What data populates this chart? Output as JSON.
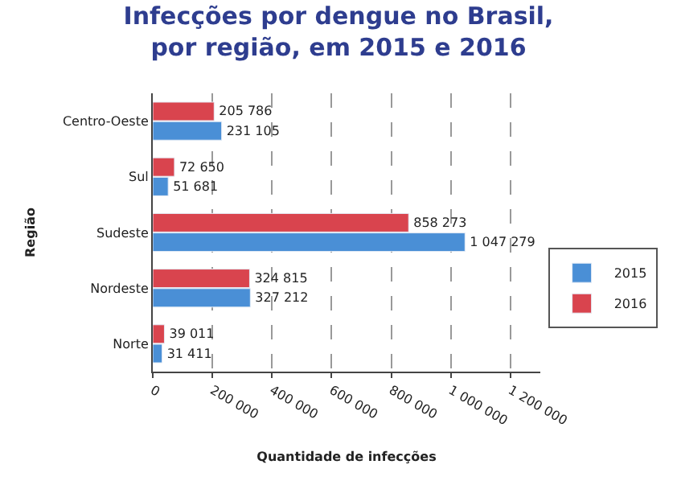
{
  "chart_data": {
    "type": "bar",
    "orientation": "horizontal",
    "title": "Infecções por dengue no Brasil,\npor região, em 2015 e 2016",
    "xlabel": "Quantidade de infecções",
    "ylabel": "Região",
    "categories": [
      "Centro-Oeste",
      "Sul",
      "Sudeste",
      "Nordeste",
      "Norte"
    ],
    "series": [
      {
        "name": "2015",
        "color": "#4a8fd6",
        "values": [
          231105,
          51681,
          1047279,
          327212,
          31411
        ],
        "value_labels": [
          "231 105",
          "51 681",
          "1 047 279",
          "327 212",
          "31 411"
        ]
      },
      {
        "name": "2016",
        "color": "#d9444e",
        "values": [
          205786,
          72650,
          858273,
          324815,
          39011
        ],
        "value_labels": [
          "205 786",
          "72 650",
          "858 273",
          "324 815",
          "39 011"
        ]
      }
    ],
    "xlim": [
      0,
      1300000
    ],
    "xticks": [
      0,
      {
        "value": 200000,
        "label": "200 000"
      },
      {
        "value": 400000,
        "label": "400 000"
      },
      {
        "value": 600000,
        "label": "600 000"
      },
      {
        "value": 800000,
        "label": "800 000"
      },
      {
        "value": 1000000,
        "label": "1 000 000"
      },
      {
        "value": 1200000,
        "label": "1 200 000"
      }
    ],
    "grid": "x",
    "legend": "right"
  }
}
